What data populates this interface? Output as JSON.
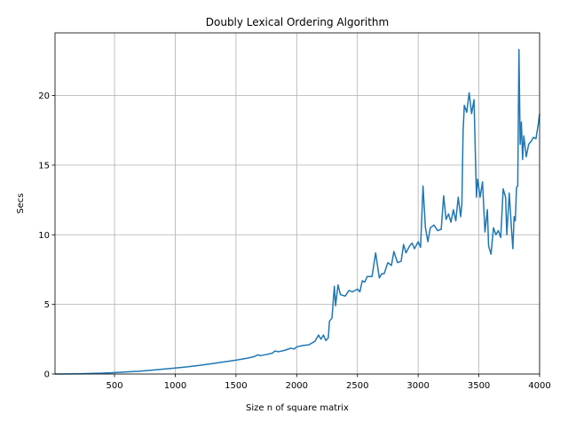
{
  "chart_data": {
    "type": "line",
    "title": "Doubly Lexical Ordering Algorithm",
    "x_label": "Size n of square matrix",
    "y_label": "Secs",
    "x": [
      10,
      200,
      400,
      500,
      600,
      700,
      800,
      900,
      1000,
      1100,
      1200,
      1300,
      1400,
      1500,
      1600,
      1650,
      1680,
      1700,
      1750,
      1800,
      1820,
      1850,
      1900,
      1950,
      1980,
      2000,
      2050,
      2100,
      2150,
      2180,
      2200,
      2220,
      2240,
      2260,
      2270,
      2290,
      2310,
      2320,
      2340,
      2360,
      2400,
      2430,
      2460,
      2500,
      2520,
      2540,
      2560,
      2580,
      2620,
      2650,
      2680,
      2700,
      2720,
      2750,
      2780,
      2800,
      2830,
      2860,
      2880,
      2900,
      2930,
      2950,
      2970,
      3000,
      3020,
      3040,
      3060,
      3080,
      3100,
      3130,
      3160,
      3190,
      3210,
      3230,
      3250,
      3270,
      3290,
      3310,
      3330,
      3350,
      3360,
      3370,
      3380,
      3400,
      3420,
      3440,
      3460,
      3480,
      3490,
      3510,
      3530,
      3550,
      3570,
      3580,
      3600,
      3620,
      3640,
      3660,
      3680,
      3700,
      3720,
      3730,
      3750,
      3770,
      3780,
      3790,
      3800,
      3810,
      3820,
      3830,
      3840,
      3850,
      3860,
      3870,
      3890,
      3910,
      3930,
      3950,
      3970,
      3990,
      4000
    ],
    "series": [
      {
        "name": "Secs",
        "color": "#1f77b4",
        "values": [
          0.0,
          0.02,
          0.06,
          0.1,
          0.15,
          0.2,
          0.27,
          0.35,
          0.43,
          0.52,
          0.62,
          0.74,
          0.87,
          1.0,
          1.15,
          1.25,
          1.38,
          1.32,
          1.4,
          1.5,
          1.65,
          1.6,
          1.7,
          1.85,
          1.8,
          1.95,
          2.05,
          2.1,
          2.35,
          2.8,
          2.5,
          2.8,
          2.4,
          2.6,
          3.8,
          4.0,
          6.3,
          4.9,
          6.4,
          5.7,
          5.6,
          6.0,
          5.9,
          6.1,
          5.9,
          6.7,
          6.6,
          7.0,
          7.0,
          8.7,
          6.9,
          7.2,
          7.2,
          8.0,
          7.8,
          8.8,
          8.0,
          8.1,
          9.3,
          8.7,
          9.2,
          9.4,
          9.0,
          9.5,
          9.1,
          13.5,
          10.5,
          9.5,
          10.5,
          10.7,
          10.3,
          10.4,
          12.8,
          11.1,
          11.5,
          10.9,
          11.8,
          11.0,
          12.7,
          11.3,
          12.2,
          17.4,
          19.3,
          18.8,
          20.2,
          18.7,
          19.7,
          12.7,
          14.0,
          12.7,
          13.8,
          10.2,
          11.8,
          9.2,
          8.6,
          10.5,
          10.0,
          10.3,
          9.8,
          13.3,
          12.7,
          10.0,
          13.0,
          10.2,
          9.0,
          11.3,
          11.0,
          13.4,
          13.5,
          23.3,
          16.5,
          18.1,
          15.4,
          17.1,
          15.6,
          16.5,
          16.7,
          17.0,
          16.9,
          18.0,
          18.7
        ]
      }
    ],
    "xlim": [
      10,
      4000
    ],
    "ylim": [
      0,
      24.5
    ],
    "xticks": [
      500,
      1000,
      1500,
      2000,
      2500,
      3000,
      3500,
      4000
    ],
    "yticks": [
      0,
      5,
      10,
      15,
      20
    ],
    "grid": true
  }
}
